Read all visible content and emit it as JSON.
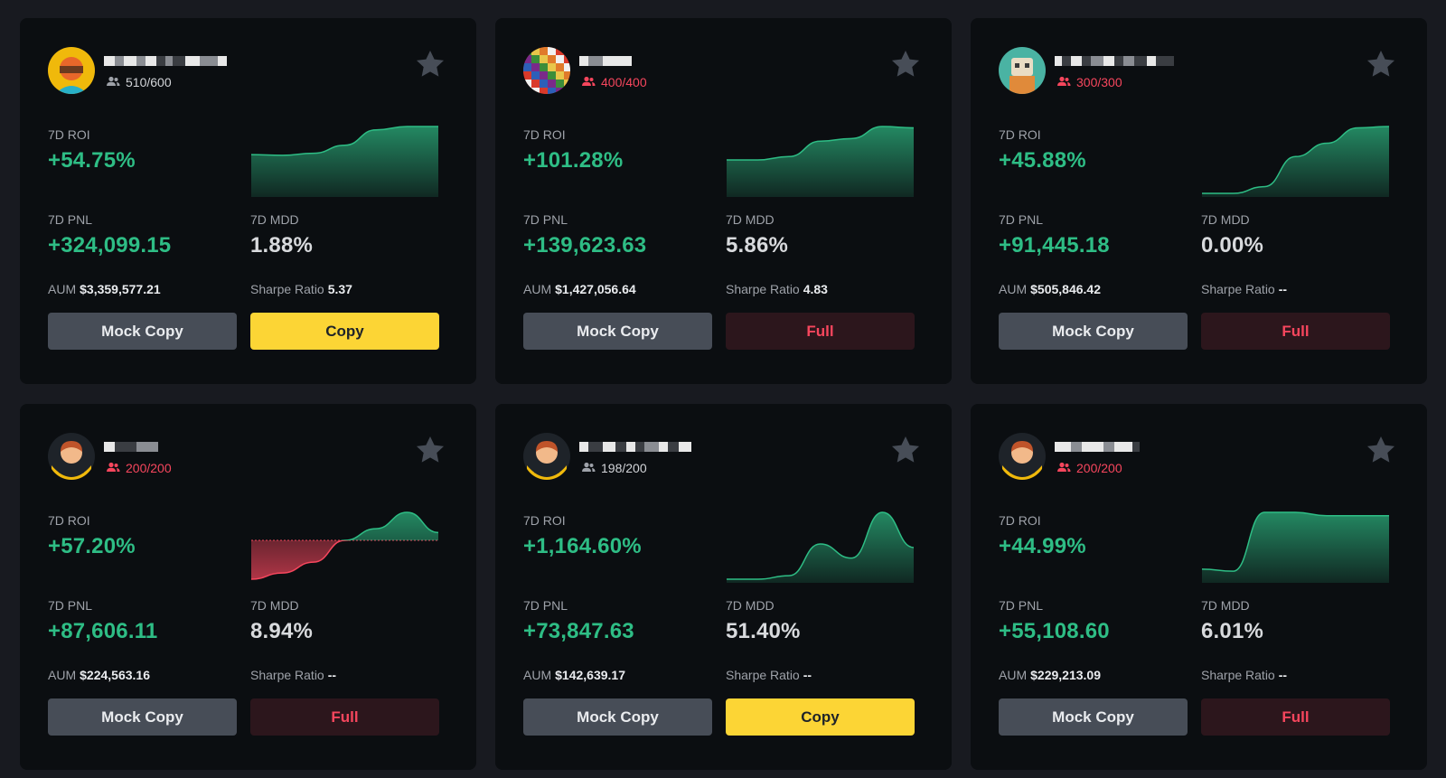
{
  "colors": {
    "background": "#181a20",
    "card": "#0b0e11",
    "positive": "#2ebd85",
    "negative": "#f6465d",
    "copy_button": "#fcd535",
    "mock_button": "#474d57",
    "full_button": "#2c161c"
  },
  "labels": {
    "roi": "7D ROI",
    "pnl": "7D PNL",
    "mdd": "7D MDD",
    "aum": "AUM",
    "sharpe": "Sharpe Ratio",
    "mock_copy": "Mock Copy"
  },
  "cards": [
    {
      "followers": "510/600",
      "followers_full": false,
      "roi": "+54.75%",
      "pnl": "+324,099.15",
      "mdd": "1.88%",
      "aum": "$3,359,577.21",
      "sharpe": "5.37",
      "action": "Copy",
      "action_type": "copy",
      "avatar_icon": "orange-helmet-avatar-icon",
      "chart": {
        "values": [
          0.58,
          0.57,
          0.6,
          0.72,
          0.95,
          1.0,
          1.0
        ],
        "baseline": 0
      }
    },
    {
      "followers": "400/400",
      "followers_full": true,
      "roi": "+101.28%",
      "pnl": "+139,623.63",
      "mdd": "5.86%",
      "aum": "$1,427,056.64",
      "sharpe": "4.83",
      "action": "Full",
      "action_type": "full",
      "avatar_icon": "colorful-pixel-avatar-icon",
      "chart": {
        "values": [
          0.5,
          0.5,
          0.55,
          0.78,
          0.82,
          1.0,
          0.98
        ],
        "baseline": 0
      }
    },
    {
      "followers": "300/300",
      "followers_full": true,
      "roi": "+45.88%",
      "pnl": "+91,445.18",
      "mdd": "0.00%",
      "aum": "$505,846.42",
      "sharpe": "--",
      "action": "Full",
      "action_type": "full",
      "avatar_icon": "robot-avatar-icon",
      "chart": {
        "values": [
          0.0,
          0.0,
          0.1,
          0.55,
          0.75,
          0.98,
          1.0
        ],
        "baseline": 0
      }
    },
    {
      "followers": "200/200",
      "followers_full": true,
      "roi": "+57.20%",
      "pnl": "+87,606.11",
      "mdd": "8.94%",
      "aum": "$224,563.16",
      "sharpe": "--",
      "action": "Full",
      "action_type": "full",
      "avatar_icon": "default-person-avatar-icon",
      "chart": {
        "values": [
          -0.5,
          -0.42,
          -0.28,
          0.0,
          0.15,
          0.36,
          0.1
        ],
        "baseline": 0
      }
    },
    {
      "followers": "198/200",
      "followers_full": false,
      "roi": "+1,164.60%",
      "pnl": "+73,847.63",
      "mdd": "51.40%",
      "aum": "$142,639.17",
      "sharpe": "--",
      "action": "Copy",
      "action_type": "copy",
      "avatar_icon": "default-person-avatar-icon",
      "chart": {
        "values": [
          0.0,
          0.0,
          0.05,
          0.5,
          0.3,
          0.95,
          0.45
        ],
        "baseline": 0
      }
    },
    {
      "followers": "200/200",
      "followers_full": true,
      "roi": "+44.99%",
      "pnl": "+55,108.60",
      "mdd": "6.01%",
      "aum": "$229,213.09",
      "sharpe": "--",
      "action": "Full",
      "action_type": "full",
      "avatar_icon": "default-person-avatar-icon",
      "chart": {
        "values": [
          0.15,
          0.12,
          1.0,
          1.0,
          0.95,
          0.95,
          0.95
        ],
        "baseline": 0
      }
    }
  ]
}
